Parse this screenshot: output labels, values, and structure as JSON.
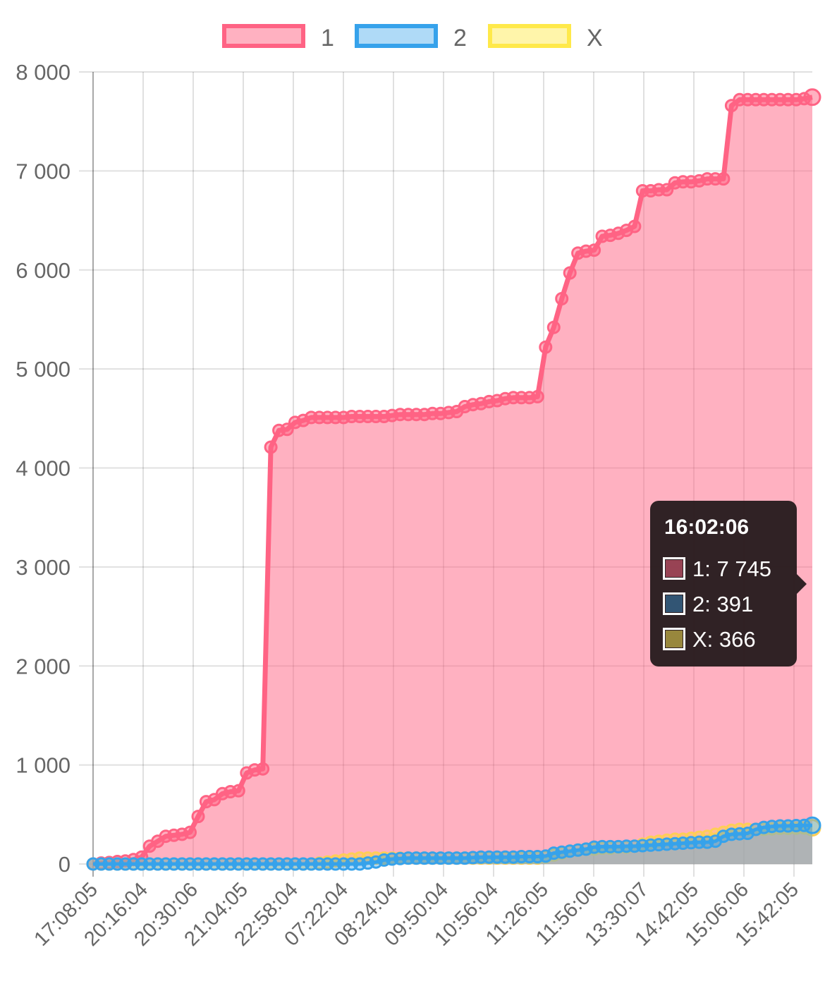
{
  "chart_data": {
    "type": "area",
    "stacked": false,
    "legend_position": "top",
    "grid": true,
    "ylim": [
      0,
      8000
    ],
    "y_ticks": [
      "0",
      "1 000",
      "2 000",
      "3 000",
      "4 000",
      "5 000",
      "6 000",
      "7 000",
      "8 000"
    ],
    "x_tick_labels": [
      "17:08:05",
      "20:16:04",
      "20:30:06",
      "21:04:05",
      "22:58:04",
      "07:22:04",
      "08:24:04",
      "09:50:04",
      "10:56:04",
      "11:26:05",
      "11:56:06",
      "13:30:07",
      "14:42:05",
      "15:06:06",
      "15:42:05"
    ],
    "num_points": 73,
    "series": [
      {
        "name": "1",
        "color": "#ff6384",
        "fill": "rgba(255,99,132,0.5)",
        "values": [
          0,
          10,
          15,
          25,
          30,
          45,
          70,
          180,
          230,
          280,
          290,
          300,
          320,
          480,
          630,
          650,
          710,
          730,
          740,
          920,
          950,
          960,
          4210,
          4380,
          4390,
          4460,
          4480,
          4510,
          4510,
          4510,
          4510,
          4510,
          4520,
          4520,
          4520,
          4520,
          4520,
          4530,
          4540,
          4540,
          4540,
          4540,
          4550,
          4550,
          4560,
          4570,
          4620,
          4640,
          4650,
          4670,
          4680,
          4700,
          4710,
          4710,
          4710,
          4720,
          5220,
          5420,
          5710,
          5970,
          6170,
          6190,
          6200,
          6340,
          6350,
          6370,
          6400,
          6440,
          6800,
          6800,
          6810,
          6810,
          6880
        ]
      },
      {
        "name": "2",
        "color": "#36a2eb",
        "fill": "rgba(54,162,235,0.4)",
        "values": [
          0,
          0,
          0,
          0,
          0,
          0,
          0,
          0,
          0,
          0,
          0,
          0,
          0,
          0,
          0,
          0,
          0,
          0,
          0,
          0,
          0,
          0,
          0,
          0,
          0,
          0,
          0,
          0,
          0,
          0,
          0,
          0,
          0,
          0,
          10,
          20,
          40,
          50,
          55,
          60,
          60,
          60,
          60,
          60,
          60,
          60,
          60,
          65,
          70,
          70,
          70,
          70,
          70,
          75,
          75,
          75,
          80,
          110,
          120,
          130,
          140,
          150,
          170,
          175,
          175,
          175,
          180,
          180,
          185,
          190,
          195,
          200,
          205
        ]
      },
      {
        "name": "X",
        "color": "#ffce56",
        "fill": "rgba(255,206,86,0.45)",
        "values": [
          0,
          0,
          0,
          0,
          0,
          0,
          0,
          0,
          0,
          0,
          0,
          0,
          0,
          0,
          0,
          0,
          0,
          0,
          0,
          0,
          0,
          0,
          0,
          0,
          0,
          0,
          0,
          0,
          10,
          20,
          30,
          40,
          50,
          60,
          60,
          60,
          60,
          60,
          60,
          60,
          60,
          60,
          60,
          60,
          60,
          60,
          60,
          60,
          60,
          60,
          60,
          60,
          60,
          60,
          60,
          60,
          70,
          90,
          110,
          130,
          140,
          150,
          150,
          160,
          160,
          170,
          170,
          180,
          200,
          220,
          230,
          240,
          250
        ]
      }
    ],
    "tail_values": {
      "1": [
        6890,
        6890,
        6900,
        6920,
        6920,
        6920,
        7660,
        7720,
        7720,
        7720,
        7720,
        7720,
        7720,
        7720,
        7720,
        7730,
        7745
      ],
      "2": [
        210,
        215,
        220,
        220,
        230,
        280,
        300,
        305,
        310,
        350,
        370,
        380,
        385,
        385,
        388,
        390,
        391
      ],
      "X": [
        250,
        260,
        270,
        280,
        300,
        320,
        340,
        350,
        350,
        350,
        350,
        355,
        360,
        360,
        362,
        364,
        366
      ]
    }
  },
  "legend": {
    "items": [
      {
        "label": "1",
        "fill": "rgba(255,99,132,0.5)",
        "border": "#ff6384"
      },
      {
        "label": "2",
        "fill": "rgba(54,162,235,0.4)",
        "border": "#36a2eb"
      },
      {
        "label": "X",
        "fill": "rgba(255,236,86,0.5)",
        "border": "#ffe94a"
      }
    ]
  },
  "tooltip": {
    "title": "16:02:06",
    "rows": [
      {
        "text": "1: 7 745",
        "color": "rgba(255,99,132,0.5)"
      },
      {
        "text": "2: 391",
        "color": "rgba(54,162,235,0.4)"
      },
      {
        "text": "X: 366",
        "color": "rgba(255,236,86,0.5)"
      }
    ]
  }
}
